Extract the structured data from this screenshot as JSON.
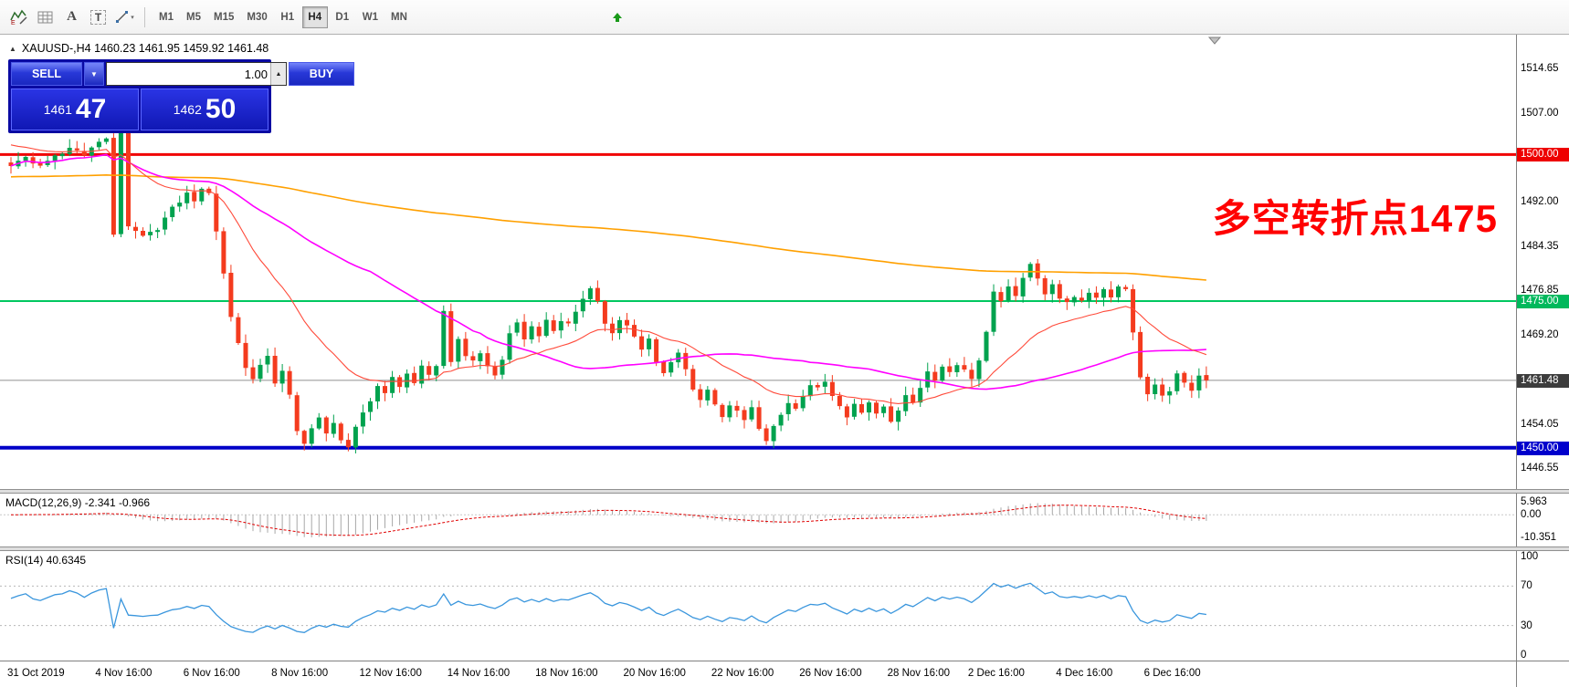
{
  "toolbar": {
    "text_label_glyph": "A",
    "text_tool_glyph": "T",
    "timeframes": {
      "items": [
        "M1",
        "M5",
        "M15",
        "M30",
        "H1",
        "H4",
        "D1",
        "W1",
        "MN"
      ],
      "active": "H4"
    }
  },
  "header": {
    "symbol_info": "XAUUSD-,H4  1460.23 1461.95 1459.92 1461.48"
  },
  "trade_panel": {
    "sell_label": "SELL",
    "buy_label": "BUY",
    "volume": "1.00",
    "bid_main": "1461",
    "bid_pips": "47",
    "ask_main": "1462",
    "ask_pips": "50"
  },
  "annotation": {
    "text": "多空转折点1475",
    "color": "#ff0000"
  },
  "main_axis": {
    "levels": [
      {
        "label": "1514.65",
        "price": 1514.65,
        "type": "normal"
      },
      {
        "label": "1507.00",
        "price": 1507.0,
        "type": "normal"
      },
      {
        "label": "1500.00",
        "price": 1500.0,
        "type": "red-line"
      },
      {
        "label": "1492.00",
        "price": 1492.0,
        "type": "normal"
      },
      {
        "label": "1484.35",
        "price": 1484.35,
        "type": "normal"
      },
      {
        "label": "1476.85",
        "price": 1476.85,
        "type": "normal"
      },
      {
        "label": "1475.00",
        "price": 1475.0,
        "type": "green-line"
      },
      {
        "label": "1469.20",
        "price": 1469.2,
        "type": "normal"
      },
      {
        "label": "1461.48",
        "price": 1461.48,
        "type": "current"
      },
      {
        "label": "1454.05",
        "price": 1454.05,
        "type": "normal"
      },
      {
        "label": "1450.00",
        "price": 1450.0,
        "type": "blue-line"
      },
      {
        "label": "1446.55",
        "price": 1446.55,
        "type": "normal"
      }
    ]
  },
  "macd": {
    "label": "MACD(12,26,9) -2.341 -0.966",
    "axis": [
      {
        "label": "5.963",
        "value": 5.963
      },
      {
        "label": "0.00",
        "value": 0
      },
      {
        "label": "-10.351",
        "value": -10.351
      }
    ]
  },
  "rsi": {
    "label": "RSI(14) 40.6345",
    "axis": [
      {
        "label": "100",
        "value": 100
      },
      {
        "label": "70",
        "value": 70
      },
      {
        "label": "30",
        "value": 30
      },
      {
        "label": "0",
        "value": 0
      }
    ],
    "guides": [
      70,
      30
    ]
  },
  "time_axis": {
    "labels": [
      {
        "text": "31 Oct 2019",
        "index": 0
      },
      {
        "text": "4 Nov 16:00",
        "index": 12
      },
      {
        "text": "6 Nov 16:00",
        "index": 24
      },
      {
        "text": "8 Nov 16:00",
        "index": 36
      },
      {
        "text": "12 Nov 16:00",
        "index": 48
      },
      {
        "text": "14 Nov 16:00",
        "index": 60
      },
      {
        "text": "18 Nov 16:00",
        "index": 72
      },
      {
        "text": "20 Nov 16:00",
        "index": 84
      },
      {
        "text": "22 Nov 16:00",
        "index": 96
      },
      {
        "text": "26 Nov 16:00",
        "index": 108
      },
      {
        "text": "28 Nov 16:00",
        "index": 120
      },
      {
        "text": "2 Dec 16:00",
        "index": 131
      },
      {
        "text": "4 Dec 16:00",
        "index": 143
      },
      {
        "text": "6 Dec 16:00",
        "index": 155
      }
    ]
  },
  "chart_data": {
    "type": "candlestick",
    "symbol": "XAUUSD-",
    "timeframe": "H4",
    "ohlc_display": {
      "open": "1460.23",
      "high": "1461.95",
      "low": "1459.92",
      "close": "1461.48"
    },
    "candle_count": 164,
    "last_close": 1461.48,
    "price_top": 1520.45,
    "price_bottom": 1442.95,
    "horizontal_lines": [
      1500.0,
      1475.0,
      1450.0
    ],
    "close_waypoints": [
      [
        0,
        1498.5
      ],
      [
        2,
        1499.5
      ],
      [
        4,
        1498.2
      ],
      [
        6,
        1500
      ],
      [
        8,
        1501
      ],
      [
        10,
        1500.3
      ],
      [
        12,
        1501.8
      ],
      [
        13,
        1503
      ],
      [
        14,
        1486.5
      ],
      [
        15,
        1503.5
      ],
      [
        16,
        1488
      ],
      [
        18,
        1486.5
      ],
      [
        20,
        1487.5
      ],
      [
        22,
        1491
      ],
      [
        24,
        1493.5
      ],
      [
        25,
        1492
      ],
      [
        26,
        1494.5
      ],
      [
        27,
        1493
      ],
      [
        28,
        1487
      ],
      [
        29,
        1480
      ],
      [
        30,
        1472
      ],
      [
        31,
        1468
      ],
      [
        32,
        1464
      ],
      [
        33,
        1461.5
      ],
      [
        34,
        1464.5
      ],
      [
        35,
        1466
      ],
      [
        36,
        1461
      ],
      [
        37,
        1463.5
      ],
      [
        38,
        1459
      ],
      [
        39,
        1452.5
      ],
      [
        40,
        1450.5
      ],
      [
        41,
        1453
      ],
      [
        42,
        1455.5
      ],
      [
        43,
        1452
      ],
      [
        44,
        1454
      ],
      [
        45,
        1451
      ],
      [
        46,
        1450.5
      ],
      [
        47,
        1453.5
      ],
      [
        48,
        1456
      ],
      [
        49,
        1458
      ],
      [
        50,
        1460.5
      ],
      [
        51,
        1459
      ],
      [
        52,
        1462
      ],
      [
        53,
        1460
      ],
      [
        54,
        1463
      ],
      [
        55,
        1461
      ],
      [
        56,
        1464
      ],
      [
        57,
        1462.5
      ],
      [
        58,
        1464
      ],
      [
        59,
        1473
      ],
      [
        60,
        1465
      ],
      [
        61,
        1468.5
      ],
      [
        62,
        1466
      ],
      [
        63,
        1464.5
      ],
      [
        64,
        1466.5
      ],
      [
        65,
        1464
      ],
      [
        66,
        1462
      ],
      [
        67,
        1465
      ],
      [
        68,
        1469.5
      ],
      [
        69,
        1471
      ],
      [
        70,
        1468.5
      ],
      [
        71,
        1470.5
      ],
      [
        72,
        1469
      ],
      [
        73,
        1471.5
      ],
      [
        74,
        1470
      ],
      [
        75,
        1472
      ],
      [
        76,
        1471
      ],
      [
        77,
        1473.5
      ],
      [
        78,
        1475.5
      ],
      [
        79,
        1477
      ],
      [
        80,
        1475
      ],
      [
        81,
        1471.5
      ],
      [
        82,
        1469.5
      ],
      [
        83,
        1472
      ],
      [
        84,
        1471
      ],
      [
        85,
        1469
      ],
      [
        86,
        1467
      ],
      [
        87,
        1468.5
      ],
      [
        88,
        1465
      ],
      [
        89,
        1462.5
      ],
      [
        90,
        1464.5
      ],
      [
        91,
        1466
      ],
      [
        92,
        1463
      ],
      [
        93,
        1460
      ],
      [
        94,
        1458
      ],
      [
        95,
        1459.5
      ],
      [
        96,
        1457
      ],
      [
        97,
        1455.5
      ],
      [
        98,
        1457.5
      ],
      [
        99,
        1456
      ],
      [
        100,
        1454.5
      ],
      [
        101,
        1456.5
      ],
      [
        102,
        1453
      ],
      [
        103,
        1451.5
      ],
      [
        104,
        1454
      ],
      [
        105,
        1456
      ],
      [
        106,
        1457.5
      ],
      [
        107,
        1456.5
      ],
      [
        108,
        1459
      ],
      [
        109,
        1461
      ],
      [
        110,
        1460
      ],
      [
        111,
        1461.5
      ],
      [
        112,
        1459
      ],
      [
        113,
        1457
      ],
      [
        114,
        1455.5
      ],
      [
        115,
        1457.5
      ],
      [
        116,
        1456
      ],
      [
        117,
        1458
      ],
      [
        118,
        1455.5
      ],
      [
        119,
        1457
      ],
      [
        120,
        1454.5
      ],
      [
        121,
        1456.5
      ],
      [
        122,
        1459
      ],
      [
        123,
        1458
      ],
      [
        124,
        1460.5
      ],
      [
        125,
        1463
      ],
      [
        126,
        1461.5
      ],
      [
        127,
        1464
      ],
      [
        128,
        1462.5
      ],
      [
        129,
        1464.5
      ],
      [
        130,
        1463
      ],
      [
        131,
        1462
      ],
      [
        132,
        1465
      ],
      [
        133,
        1470
      ],
      [
        134,
        1476.5
      ],
      [
        135,
        1475
      ],
      [
        136,
        1477.5
      ],
      [
        137,
        1476
      ],
      [
        138,
        1479
      ],
      [
        139,
        1481.5
      ],
      [
        140,
        1478.5
      ],
      [
        141,
        1476
      ],
      [
        142,
        1477.5
      ],
      [
        143,
        1475.5
      ],
      [
        144,
        1474.5
      ],
      [
        145,
        1476
      ],
      [
        146,
        1475
      ],
      [
        147,
        1476.5
      ],
      [
        148,
        1475.5
      ],
      [
        149,
        1477
      ],
      [
        150,
        1476
      ],
      [
        151,
        1477.5
      ],
      [
        152,
        1477
      ],
      [
        153,
        1470
      ],
      [
        154,
        1462
      ],
      [
        155,
        1459.5
      ],
      [
        156,
        1461
      ],
      [
        157,
        1458.5
      ],
      [
        158,
        1460
      ],
      [
        159,
        1462.5
      ],
      [
        160,
        1461
      ],
      [
        161,
        1459.5
      ],
      [
        162,
        1462
      ],
      [
        163,
        1461.48
      ]
    ],
    "colors": {
      "up": "#00a24e",
      "down": "#f43b1e",
      "ma_fast": "#ff4a3a",
      "ma_mid": "#ff00ff",
      "ma_slow": "#ffa000",
      "rsi": "#3a96dd",
      "macd_hist": "#a8a8a8",
      "macd_signal": "#e00000",
      "hline_red": "#f00000",
      "hline_green": "#00c860",
      "hline_blue": "#0000c8",
      "current_line": "#909090"
    }
  }
}
